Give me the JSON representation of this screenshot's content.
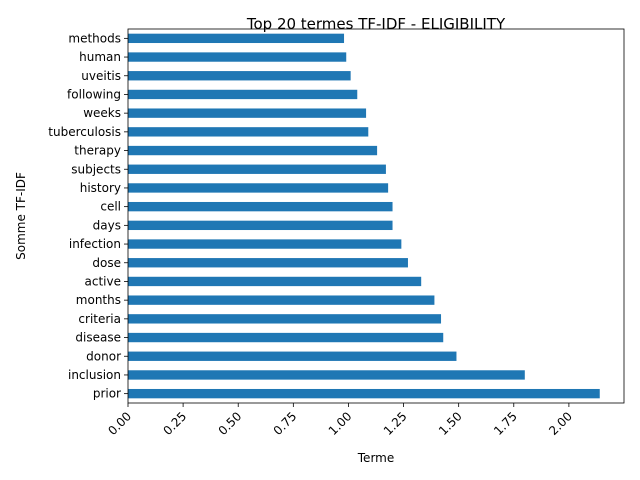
{
  "chart_data": {
    "type": "bar",
    "orientation": "horizontal",
    "title": "Top 20 termes TF-IDF - ELIGIBILITY",
    "xlabel": "Terme",
    "ylabel": "Somme TF-IDF",
    "categories": [
      "prior",
      "inclusion",
      "donor",
      "disease",
      "criteria",
      "months",
      "active",
      "dose",
      "infection",
      "days",
      "cell",
      "history",
      "subjects",
      "therapy",
      "tuberculosis",
      "weeks",
      "following",
      "uveitis",
      "human",
      "methods"
    ],
    "values": [
      2.14,
      1.8,
      1.49,
      1.43,
      1.42,
      1.39,
      1.33,
      1.27,
      1.24,
      1.2,
      1.2,
      1.18,
      1.17,
      1.13,
      1.09,
      1.08,
      1.04,
      1.01,
      0.99,
      0.98
    ],
    "xlim": [
      0,
      2.25
    ],
    "xticks": [
      "0.00",
      "0.25",
      "0.50",
      "0.75",
      "1.00",
      "1.25",
      "1.50",
      "1.75",
      "2.00"
    ],
    "xtick_rotation": 45,
    "bar_color": "#1f77b4",
    "grid": false,
    "legend": "none"
  }
}
